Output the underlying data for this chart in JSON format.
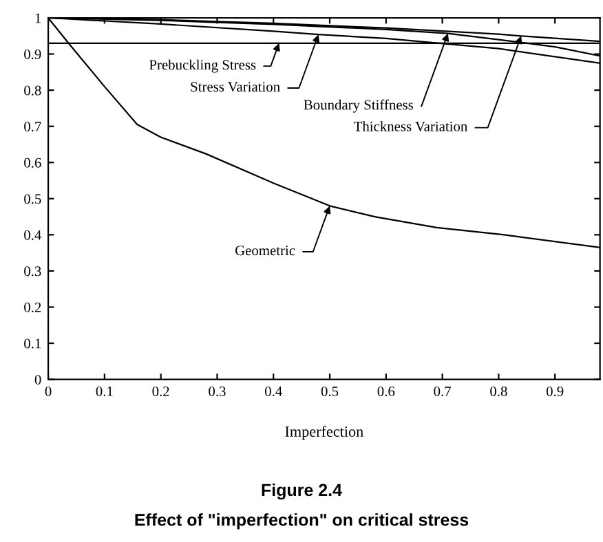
{
  "chart_data": {
    "type": "line",
    "title": "Figure 2.4",
    "subtitle": "Effect of \"imperfection\" on critical stress",
    "xlabel": "Imperfection",
    "xlim": [
      0,
      0.98
    ],
    "ylim": [
      0,
      1
    ],
    "xticks": [
      0,
      0.1,
      0.2,
      0.3,
      0.4,
      0.5,
      0.6,
      0.7,
      0.8,
      0.9
    ],
    "yticks": [
      0,
      0.1,
      0.2,
      0.3,
      0.4,
      0.5,
      0.6,
      0.7,
      0.8,
      0.9,
      1
    ],
    "grid": false,
    "legend": false,
    "marker": "none",
    "line_style": "solid",
    "series": [
      {
        "name": "Prebuckling Stress",
        "color": "#000000",
        "x": [
          0,
          0.41,
          0.98
        ],
        "values": [
          0.93,
          0.93,
          0.93
        ]
      },
      {
        "name": "Stress Variation",
        "color": "#000000",
        "x": [
          0,
          0.2,
          0.4,
          0.48,
          0.6,
          0.8,
          0.98
        ],
        "values": [
          1,
          0.983,
          0.963,
          0.954,
          0.943,
          0.915,
          0.875
        ]
      },
      {
        "name": "Boundary Stiffness",
        "color": "#000000",
        "x": [
          0,
          0.2,
          0.4,
          0.6,
          0.71,
          0.8,
          0.9,
          0.98
        ],
        "values": [
          1,
          0.993,
          0.982,
          0.968,
          0.957,
          0.94,
          0.92,
          0.895
        ]
      },
      {
        "name": "Thickness Variation",
        "color": "#000000",
        "x": [
          0,
          0.2,
          0.4,
          0.6,
          0.8,
          0.84,
          0.98
        ],
        "values": [
          1,
          0.995,
          0.985,
          0.972,
          0.955,
          0.95,
          0.935
        ]
      },
      {
        "name": "Geometric",
        "color": "#000000",
        "x": [
          0,
          0.036,
          0.1,
          0.158,
          0.2,
          0.28,
          0.4,
          0.5,
          0.58,
          0.69,
          0.81,
          0.98
        ],
        "values": [
          1,
          0.93,
          0.81,
          0.705,
          0.67,
          0.624,
          0.543,
          0.48,
          0.45,
          0.42,
          0.4,
          0.365
        ]
      }
    ]
  }
}
